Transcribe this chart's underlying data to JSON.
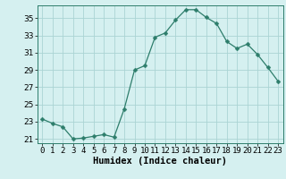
{
  "x": [
    0,
    1,
    2,
    3,
    4,
    5,
    6,
    7,
    8,
    9,
    10,
    11,
    12,
    13,
    14,
    15,
    16,
    17,
    18,
    19,
    20,
    21,
    22,
    23
  ],
  "y": [
    23.3,
    22.8,
    22.4,
    21.0,
    21.1,
    21.3,
    21.5,
    21.2,
    24.5,
    29.0,
    29.5,
    32.8,
    33.3,
    34.8,
    36.0,
    36.0,
    35.1,
    34.4,
    32.3,
    31.5,
    32.0,
    30.8,
    29.3,
    27.7
  ],
  "line_color": "#2d7d6b",
  "marker": "D",
  "marker_size": 2.5,
  "bg_color": "#d5f0f0",
  "grid_color": "#aad4d4",
  "xlabel": "Humidex (Indice chaleur)",
  "ylim": [
    20.5,
    36.5
  ],
  "xlim": [
    -0.5,
    23.5
  ],
  "yticks": [
    21,
    23,
    25,
    27,
    29,
    31,
    33,
    35
  ],
  "xticks": [
    0,
    1,
    2,
    3,
    4,
    5,
    6,
    7,
    8,
    9,
    10,
    11,
    12,
    13,
    14,
    15,
    16,
    17,
    18,
    19,
    20,
    21,
    22,
    23
  ],
  "tick_label_fontsize": 6.5,
  "xlabel_fontsize": 7.5,
  "spine_color": "#2d7d6b"
}
